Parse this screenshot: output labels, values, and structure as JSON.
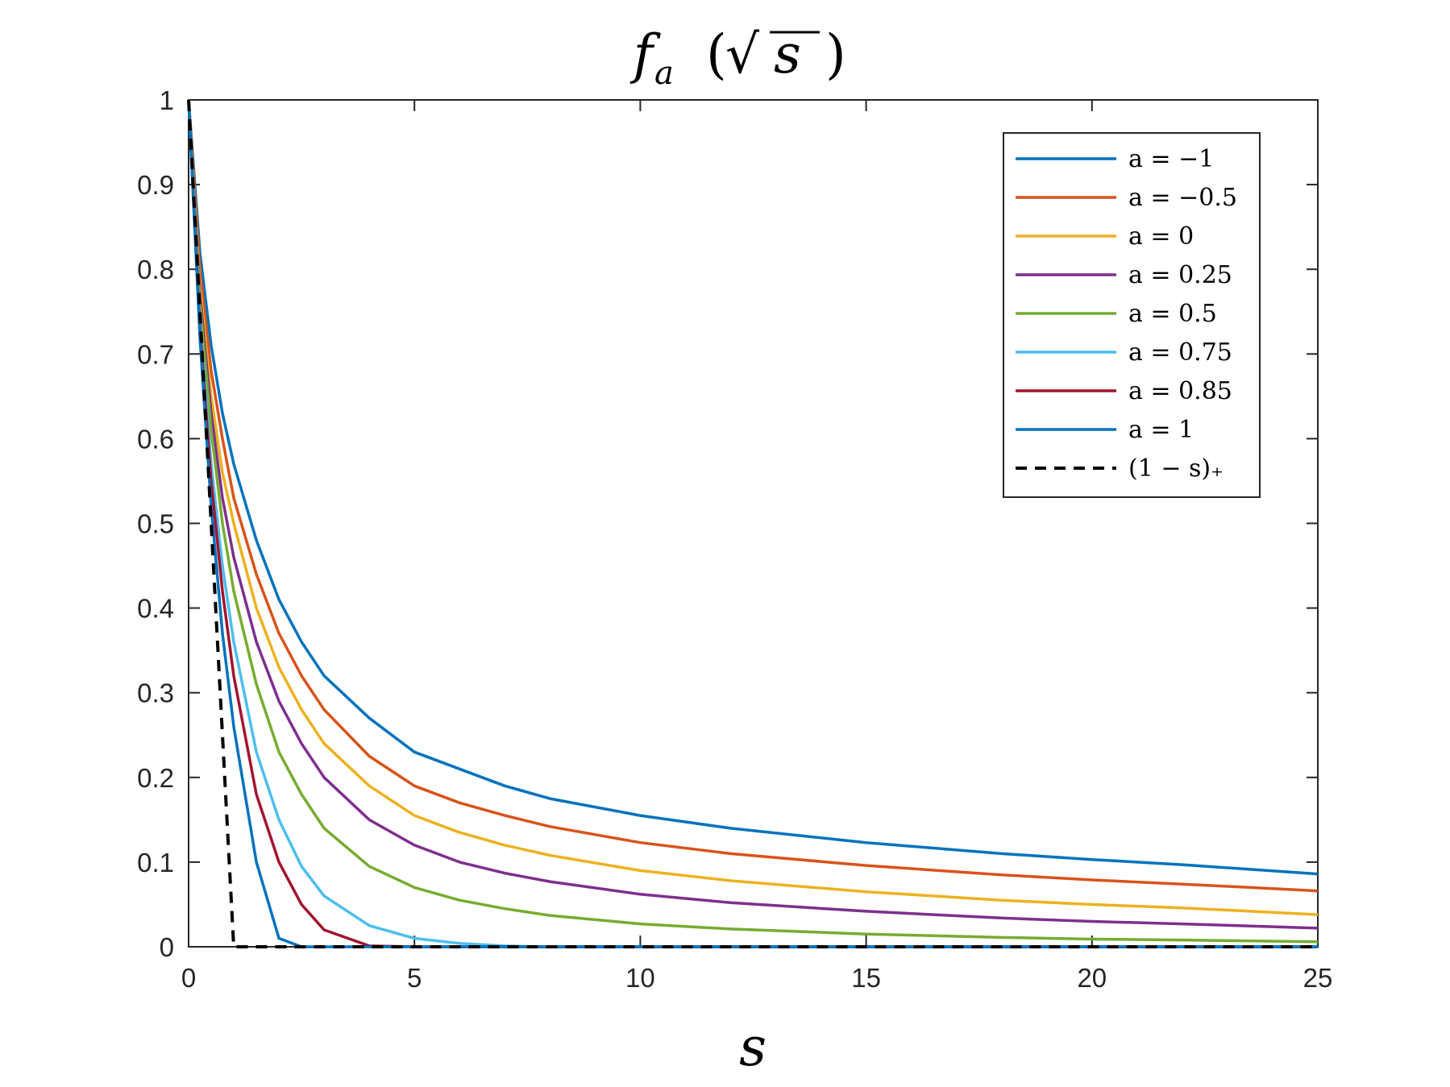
{
  "chart_data": {
    "type": "line",
    "title": "f_a(√s)",
    "title_parts": {
      "f": "f",
      "sub": "a",
      "open": "(",
      "sqrt": "√",
      "arg": "s",
      "close": ")"
    },
    "xlabel": "s",
    "ylabel": "",
    "xlim": [
      0,
      25
    ],
    "ylim": [
      0,
      1
    ],
    "xticks": [
      0,
      5,
      10,
      15,
      20,
      25
    ],
    "yticks": [
      0,
      0.1,
      0.2,
      0.3,
      0.4,
      0.5,
      0.6,
      0.7,
      0.8,
      0.9,
      1
    ],
    "xtick_labels": [
      "0",
      "5",
      "10",
      "15",
      "20",
      "25"
    ],
    "ytick_labels": [
      "0",
      "0.1",
      "0.2",
      "0.3",
      "0.4",
      "0.5",
      "0.6",
      "0.7",
      "0.8",
      "0.9",
      "1"
    ],
    "grid": false,
    "legend_position": "top-right",
    "x": [
      0,
      0.25,
      0.5,
      0.75,
      1,
      1.5,
      2,
      2.5,
      3,
      4,
      5,
      6,
      7,
      8,
      10,
      12,
      15,
      18,
      20,
      22,
      25
    ],
    "series": [
      {
        "name": "a = −1",
        "color": "#0072BD",
        "dashed": false,
        "values": [
          1,
          0.82,
          0.71,
          0.63,
          0.57,
          0.48,
          0.41,
          0.36,
          0.32,
          0.27,
          0.23,
          0.21,
          0.19,
          0.175,
          0.155,
          0.14,
          0.123,
          0.11,
          0.103,
          0.097,
          0.086
        ]
      },
      {
        "name": "a = −0.5",
        "color": "#D95319",
        "dashed": false,
        "values": [
          1,
          0.8,
          0.68,
          0.6,
          0.53,
          0.44,
          0.37,
          0.32,
          0.28,
          0.225,
          0.19,
          0.17,
          0.155,
          0.142,
          0.123,
          0.11,
          0.096,
          0.085,
          0.079,
          0.074,
          0.066
        ]
      },
      {
        "name": "a = 0",
        "color": "#EDB120",
        "dashed": false,
        "values": [
          1,
          0.78,
          0.65,
          0.56,
          0.5,
          0.4,
          0.33,
          0.28,
          0.24,
          0.19,
          0.155,
          0.135,
          0.12,
          0.108,
          0.09,
          0.078,
          0.065,
          0.055,
          0.05,
          0.046,
          0.038
        ]
      },
      {
        "name": "a = 0.25",
        "color": "#7E2F8E",
        "dashed": false,
        "values": [
          1,
          0.77,
          0.63,
          0.53,
          0.46,
          0.36,
          0.29,
          0.24,
          0.2,
          0.15,
          0.12,
          0.1,
          0.087,
          0.077,
          0.062,
          0.052,
          0.042,
          0.034,
          0.03,
          0.027,
          0.022
        ]
      },
      {
        "name": "a = 0.5",
        "color": "#77AC30",
        "dashed": false,
        "values": [
          1,
          0.76,
          0.61,
          0.5,
          0.42,
          0.31,
          0.23,
          0.18,
          0.14,
          0.095,
          0.07,
          0.055,
          0.045,
          0.037,
          0.027,
          0.021,
          0.015,
          0.011,
          0.009,
          0.008,
          0.006
        ]
      },
      {
        "name": "a = 0.75",
        "color": "#4DBEEE",
        "dashed": false,
        "values": [
          1,
          0.74,
          0.57,
          0.45,
          0.36,
          0.23,
          0.15,
          0.095,
          0.06,
          0.025,
          0.01,
          0.004,
          0.001,
          0,
          0,
          0,
          0,
          0,
          0,
          0,
          0
        ]
      },
      {
        "name": "a = 0.85",
        "color": "#A2142F",
        "dashed": false,
        "values": [
          1,
          0.73,
          0.55,
          0.42,
          0.32,
          0.18,
          0.1,
          0.05,
          0.02,
          0.001,
          0,
          0,
          0,
          0,
          0,
          0,
          0,
          0,
          0,
          0,
          0
        ]
      },
      {
        "name": "a = 1",
        "color": "#0072BD",
        "dashed": false,
        "values": [
          1,
          0.72,
          0.52,
          0.37,
          0.26,
          0.1,
          0.01,
          0,
          0,
          0,
          0,
          0,
          0,
          0,
          0,
          0,
          0,
          0,
          0,
          0,
          0
        ]
      },
      {
        "name": "(1 − s)₊",
        "color": "#000000",
        "dashed": true,
        "values": [
          1,
          0.75,
          0.5,
          0.25,
          0,
          0,
          0,
          0,
          0,
          0,
          0,
          0,
          0,
          0,
          0,
          0,
          0,
          0,
          0,
          0,
          0
        ]
      }
    ]
  }
}
